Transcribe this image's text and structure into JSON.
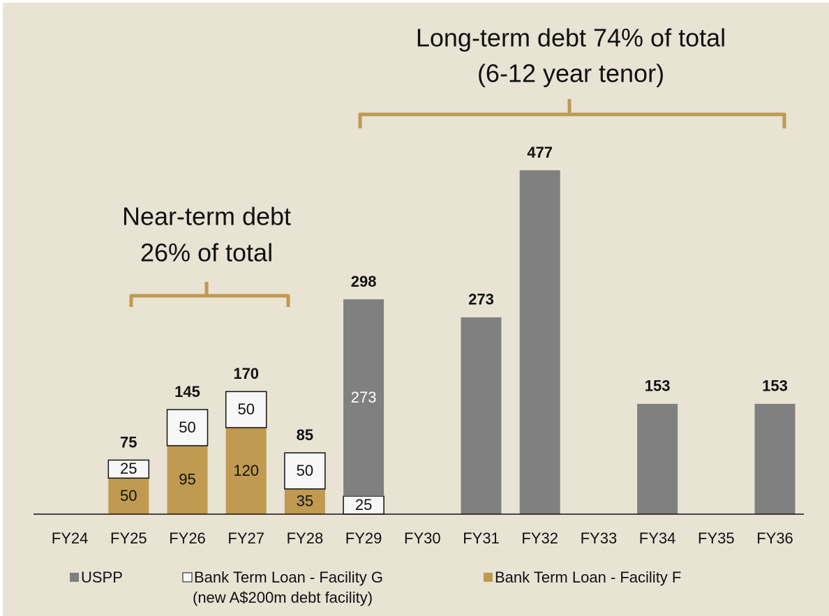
{
  "chart_data": {
    "type": "stacked_bar",
    "categories": [
      "FY24",
      "FY25",
      "FY26",
      "FY27",
      "FY28",
      "FY29",
      "FY30",
      "FY31",
      "FY32",
      "FY33",
      "FY34",
      "FY35",
      "FY36"
    ],
    "series": [
      {
        "name": "Bank Term Loan - Facility F",
        "color": "#bf9a50",
        "label_color": "#111111",
        "values": [
          null,
          50,
          95,
          120,
          35,
          null,
          null,
          null,
          null,
          null,
          null,
          null,
          null
        ]
      },
      {
        "name": "Bank Term Loan - Facility G",
        "color": "#f7f7f7",
        "label_color": "#111111",
        "values": [
          null,
          25,
          50,
          50,
          50,
          25,
          null,
          null,
          null,
          null,
          null,
          null,
          null
        ]
      },
      {
        "name": "USPP",
        "color": "#808080",
        "label_color": "#ffffff",
        "values": [
          null,
          null,
          null,
          null,
          null,
          273,
          null,
          273,
          477,
          null,
          153,
          null,
          153
        ],
        "value_labels": [
          null,
          null,
          null,
          null,
          null,
          "273",
          null,
          null,
          null,
          null,
          null,
          null,
          null
        ]
      }
    ],
    "totals": [
      null,
      75,
      145,
      170,
      85,
      298,
      null,
      273,
      477,
      null,
      153,
      null,
      153
    ],
    "legend_note": "(new A$200m debt facility)",
    "annotations": [
      {
        "lines": [
          "Near-term debt",
          "26% of total"
        ]
      },
      {
        "lines": [
          "Long-term debt 74% of total",
          "(6-12 year tenor)"
        ]
      }
    ],
    "ylim": [
      0,
      600
    ]
  }
}
